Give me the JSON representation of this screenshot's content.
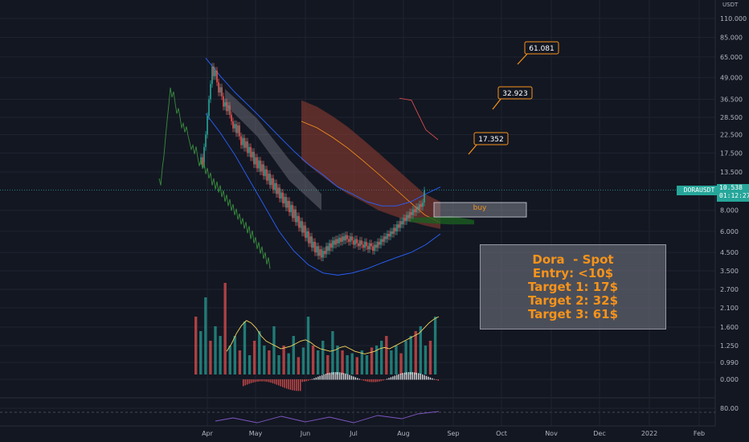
{
  "chart_data": {
    "type": "candlestick",
    "symbol": "DORAUSDT",
    "currency": "USDT",
    "last_price": "10.538",
    "countdown": "01:12:27",
    "y_axis_labels": [
      "110.000",
      "85.000",
      "65.000",
      "49.000",
      "36.500",
      "28.500",
      "22.500",
      "17.500",
      "13.500",
      "10.538",
      "8.000",
      "6.000",
      "4.500",
      "3.500",
      "2.700",
      "2.100",
      "1.600",
      "1.250",
      "0.990",
      "0.000",
      "80.00"
    ],
    "x_axis_labels": [
      "Apr",
      "May",
      "Jun",
      "Jul",
      "Aug",
      "Sep",
      "Oct",
      "Nov",
      "Dec",
      "2022",
      "Feb"
    ],
    "price_scale": "log",
    "grid": true,
    "candles": {
      "start": "2021-03-28",
      "interval_days": 1,
      "close": [
        16.5,
        15.0,
        19.0,
        22.5,
        29.0,
        36.5,
        45.0,
        57.0,
        50.0,
        54.0,
        46.0,
        40.0,
        43.0,
        38.0,
        33.0,
        35.0,
        31.0,
        33.5,
        29.5,
        27.0,
        24.5,
        26.0,
        23.0,
        25.5,
        22.0,
        19.5,
        21.5,
        18.8,
        20.5,
        17.5,
        19.0,
        16.5,
        17.8,
        15.0,
        16.5,
        14.2,
        15.8,
        13.6,
        15.0,
        12.8,
        14.0,
        12.0,
        13.2,
        11.3,
        12.4,
        10.6,
        11.6,
        10.0,
        10.9,
        9.4,
        10.2,
        8.8,
        9.6,
        8.3,
        9.1,
        7.8,
        8.6,
        7.2,
        8.1,
        6.8,
        7.4,
        6.3,
        6.9,
        5.9,
        6.5,
        5.5,
        6.0,
        5.1,
        5.6,
        4.8,
        5.2,
        4.5,
        4.9,
        4.3,
        4.7,
        4.2,
        4.6,
        4.4,
        4.9,
        4.6,
        5.1,
        4.8,
        5.3,
        5.0,
        5.4,
        5.1,
        5.5,
        5.2,
        5.6,
        5.3,
        5.7,
        5.4,
        5.2,
        5.6,
        5.3,
        5.0,
        5.4,
        5.1,
        4.9,
        5.3,
        5.0,
        4.8,
        5.2,
        4.9,
        4.7,
        5.1,
        4.9,
        4.6,
        5.0,
        4.8,
        5.2,
        5.0,
        5.4,
        5.2,
        5.6,
        5.4,
        5.8,
        5.6,
        6.0,
        5.8,
        6.3,
        6.0,
        6.6,
        6.3,
        6.9,
        6.6,
        7.2,
        6.9,
        7.5,
        7.2,
        7.8,
        7.5,
        8.1,
        7.8,
        8.4,
        8.1,
        8.7,
        8.4,
        8.9,
        10.5
      ]
    },
    "ichimoku_cloud": {
      "upper": [
        36.0,
        33.0,
        29.0,
        25.0,
        21.0,
        17.5,
        14.5,
        12.0,
        10.0,
        9.0
      ],
      "lower": [
        16.0,
        13.5,
        11.5,
        10.0,
        9.0,
        8.0,
        7.4,
        6.9,
        6.5,
        6.2
      ]
    },
    "bollinger": {
      "upper": [
        64.0,
        50.0,
        40.0,
        33.0,
        27.0,
        22.0,
        18.0,
        15.0,
        13.0,
        11.0,
        10.0,
        9.0,
        8.5,
        8.5,
        9.0,
        10.0,
        11.0
      ],
      "lower": [
        30.0,
        23.0,
        17.0,
        12.0,
        8.5,
        6.0,
        4.6,
        3.8,
        3.4,
        3.3,
        3.4,
        3.6,
        3.9,
        4.2,
        4.5,
        5.0,
        5.8
      ]
    },
    "volume": [
      60,
      45,
      80,
      35,
      50,
      40,
      95,
      30,
      40,
      25,
      55,
      20,
      35,
      45,
      30,
      25,
      50,
      20,
      30,
      22,
      40,
      18,
      28,
      60,
      30,
      25,
      35,
      20,
      45,
      30,
      25,
      20,
      22,
      18,
      25,
      20,
      28,
      30,
      35,
      40,
      25,
      30,
      22,
      35,
      40,
      45,
      50,
      30,
      35,
      60
    ],
    "volume_ma": [
      18,
      24,
      32,
      38,
      42,
      40,
      36,
      30,
      26,
      24,
      22,
      20,
      21,
      22,
      24,
      26,
      27,
      25,
      22,
      20,
      19,
      18,
      19,
      21,
      22,
      20,
      18,
      17,
      16,
      17,
      18,
      20,
      21,
      20,
      22,
      24,
      26,
      28,
      30,
      32,
      36,
      40,
      43,
      45
    ],
    "oscillator_labels": [
      "80.00"
    ],
    "annotations": {
      "targets": [
        "61.081",
        "32.923",
        "17.352"
      ],
      "buy_label": "buy",
      "buy_zone": [
        7.3,
        8.9
      ]
    }
  },
  "note": {
    "lines": [
      "Dora  - Spot",
      "Entry: <10$",
      "Target 1: 17$",
      "Target 2: 32$",
      "Target 3: 61$"
    ]
  },
  "colors": {
    "background": "#131722",
    "up": "#26a69a",
    "down": "#ef5350",
    "cloud": "#8b3a30",
    "bollinger": "#2962ff",
    "annotation": "#f7931a"
  }
}
